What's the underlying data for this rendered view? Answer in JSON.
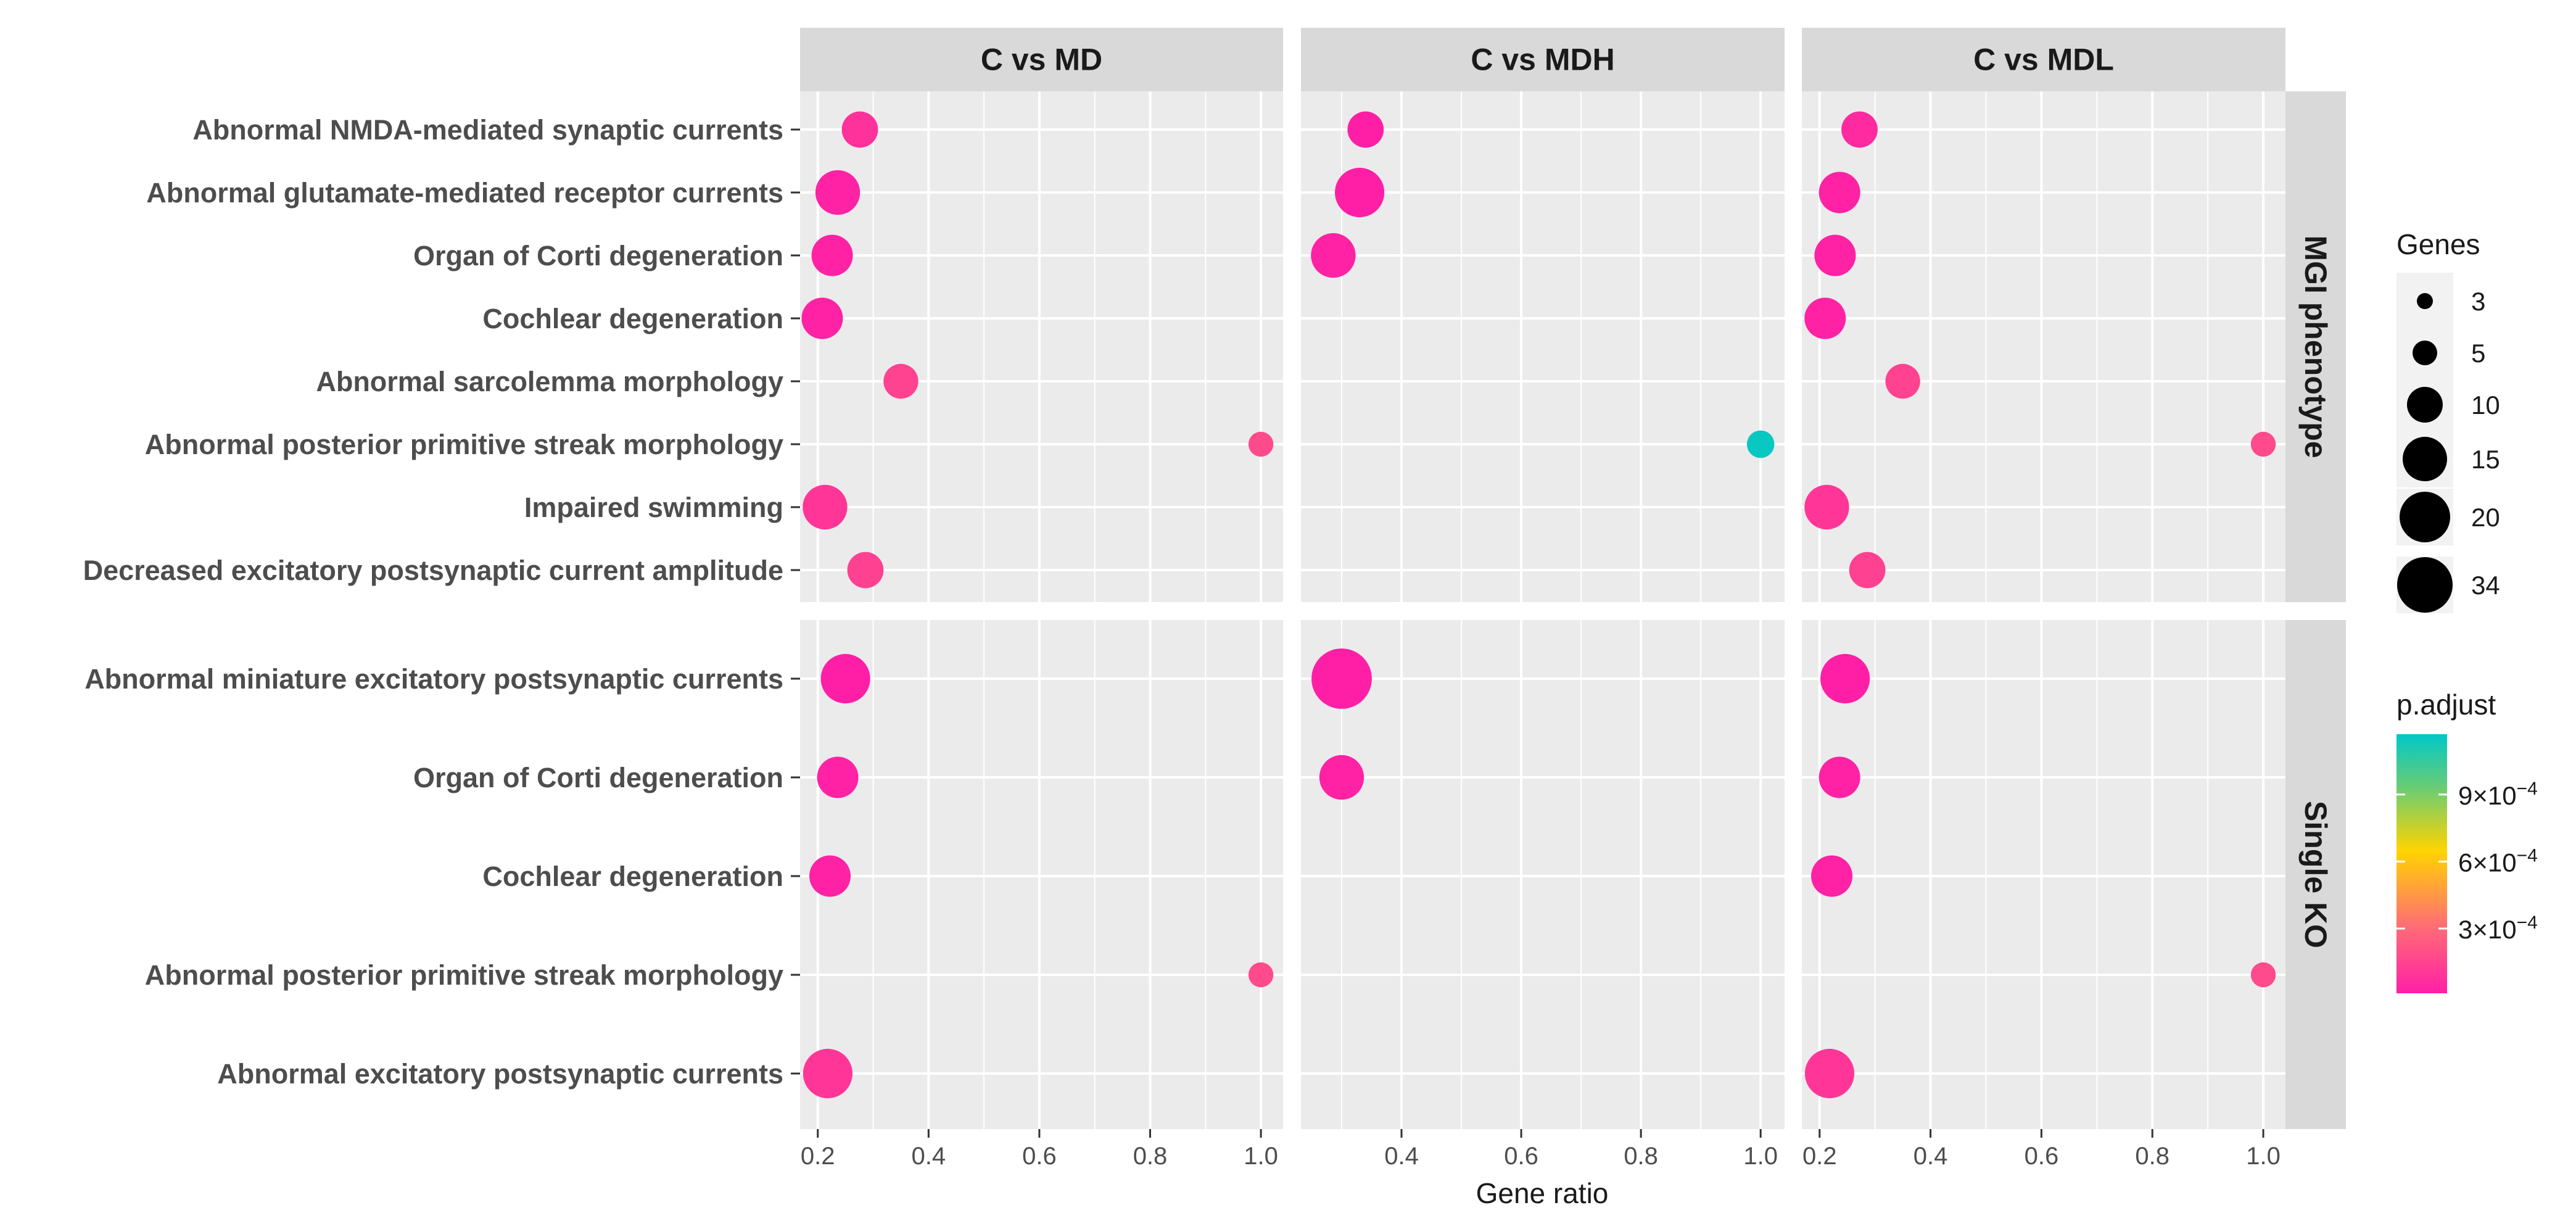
{
  "chart_data": {
    "type": "scatter",
    "chart_kind": "dot plot (faceted)",
    "xlabel": "Gene ratio",
    "x_ticks": {
      "C vs MD": [
        0.2,
        0.4,
        0.6,
        0.8,
        1.0
      ],
      "C vs MDH": [
        0.4,
        0.6,
        0.8,
        1.0
      ],
      "C vs MDL": [
        0.2,
        0.4,
        0.6,
        0.8,
        1.0
      ]
    },
    "x_tick_labels": {
      "0.2": "0.2",
      "0.4": "0.4",
      "0.6": "0.6",
      "0.8": "0.8",
      "1.0": "1.0"
    },
    "facet_columns": [
      "C vs MD",
      "C vs MDH",
      "C vs MDL"
    ],
    "facet_rows": [
      {
        "name": "MGI phenotype",
        "terms": [
          "Abnormal NMDA-mediated synaptic currents",
          "Abnormal glutamate-mediated receptor currents",
          "Organ of Corti degeneration",
          "Cochlear degeneration",
          "Abnormal sarcolemma morphology",
          "Abnormal posterior primitive streak morphology",
          "Impaired swimming",
          "Decreased excitatory postsynaptic current amplitude"
        ]
      },
      {
        "name": "Single KO",
        "terms": [
          "Abnormal miniature excitatory postsynaptic currents",
          "Organ of Corti degeneration",
          "Cochlear degeneration",
          "Abnormal posterior primitive streak morphology",
          "Abnormal excitatory postsynaptic currents"
        ]
      }
    ],
    "points": [
      {
        "facet": "C vs MD",
        "row": "MGI phenotype",
        "term": 0,
        "x": 0.276,
        "genes": 8,
        "p_adjust": 8e-05
      },
      {
        "facet": "C vs MD",
        "row": "MGI phenotype",
        "term": 1,
        "x": 0.236,
        "genes": 15,
        "p_adjust": 2e-05
      },
      {
        "facet": "C vs MD",
        "row": "MGI phenotype",
        "term": 2,
        "x": 0.226,
        "genes": 12,
        "p_adjust": 2e-05
      },
      {
        "facet": "C vs MD",
        "row": "MGI phenotype",
        "term": 3,
        "x": 0.208,
        "genes": 12,
        "p_adjust": 2e-05
      },
      {
        "facet": "C vs MD",
        "row": "MGI phenotype",
        "term": 4,
        "x": 0.35,
        "genes": 7,
        "p_adjust": 0.00015
      },
      {
        "facet": "C vs MD",
        "row": "MGI phenotype",
        "term": 5,
        "x": 1.0,
        "genes": 2,
        "p_adjust": 0.00018
      },
      {
        "facet": "C vs MD",
        "row": "MGI phenotype",
        "term": 6,
        "x": 0.213,
        "genes": 15,
        "p_adjust": 0.0001
      },
      {
        "facet": "C vs MD",
        "row": "MGI phenotype",
        "term": 7,
        "x": 0.286,
        "genes": 8,
        "p_adjust": 0.00014
      },
      {
        "facet": "C vs MD",
        "row": "Single KO",
        "term": 0,
        "x": 0.25,
        "genes": 20,
        "p_adjust": 1e-05
      },
      {
        "facet": "C vs MD",
        "row": "Single KO",
        "term": 1,
        "x": 0.236,
        "genes": 12,
        "p_adjust": 2e-05
      },
      {
        "facet": "C vs MD",
        "row": "Single KO",
        "term": 2,
        "x": 0.222,
        "genes": 12,
        "p_adjust": 2e-05
      },
      {
        "facet": "C vs MD",
        "row": "Single KO",
        "term": 3,
        "x": 1.0,
        "genes": 2,
        "p_adjust": 0.00018
      },
      {
        "facet": "C vs MD",
        "row": "Single KO",
        "term": 4,
        "x": 0.218,
        "genes": 20,
        "p_adjust": 0.0001
      },
      {
        "facet": "C vs MDH",
        "row": "MGI phenotype",
        "term": 0,
        "x": 0.34,
        "genes": 8,
        "p_adjust": 1e-05
      },
      {
        "facet": "C vs MDH",
        "row": "MGI phenotype",
        "term": 1,
        "x": 0.33,
        "genes": 20,
        "p_adjust": 1e-05
      },
      {
        "facet": "C vs MDH",
        "row": "MGI phenotype",
        "term": 2,
        "x": 0.286,
        "genes": 15,
        "p_adjust": 2e-05
      },
      {
        "facet": "C vs MDH",
        "row": "MGI phenotype",
        "term": 5,
        "x": 1.0,
        "genes": 3,
        "p_adjust": 0.00115
      },
      {
        "facet": "C vs MDH",
        "row": "Single KO",
        "term": 0,
        "x": 0.3,
        "genes": 34,
        "p_adjust": 1e-05
      },
      {
        "facet": "C vs MDH",
        "row": "Single KO",
        "term": 1,
        "x": 0.3,
        "genes": 15,
        "p_adjust": 2e-05
      },
      {
        "facet": "C vs MDL",
        "row": "MGI phenotype",
        "term": 0,
        "x": 0.272,
        "genes": 8,
        "p_adjust": 5e-05
      },
      {
        "facet": "C vs MDL",
        "row": "MGI phenotype",
        "term": 1,
        "x": 0.236,
        "genes": 12,
        "p_adjust": 2e-05
      },
      {
        "facet": "C vs MDL",
        "row": "MGI phenotype",
        "term": 2,
        "x": 0.228,
        "genes": 12,
        "p_adjust": 2e-05
      },
      {
        "facet": "C vs MDL",
        "row": "MGI phenotype",
        "term": 3,
        "x": 0.21,
        "genes": 12,
        "p_adjust": 2e-05
      },
      {
        "facet": "C vs MDL",
        "row": "MGI phenotype",
        "term": 4,
        "x": 0.35,
        "genes": 7,
        "p_adjust": 0.00015
      },
      {
        "facet": "C vs MDL",
        "row": "MGI phenotype",
        "term": 5,
        "x": 1.0,
        "genes": 2,
        "p_adjust": 0.00018
      },
      {
        "facet": "C vs MDL",
        "row": "MGI phenotype",
        "term": 6,
        "x": 0.213,
        "genes": 15,
        "p_adjust": 0.0001
      },
      {
        "facet": "C vs MDL",
        "row": "MGI phenotype",
        "term": 7,
        "x": 0.286,
        "genes": 8,
        "p_adjust": 0.00014
      },
      {
        "facet": "C vs MDL",
        "row": "Single KO",
        "term": 0,
        "x": 0.246,
        "genes": 20,
        "p_adjust": 1e-05
      },
      {
        "facet": "C vs MDL",
        "row": "Single KO",
        "term": 1,
        "x": 0.236,
        "genes": 12,
        "p_adjust": 2e-05
      },
      {
        "facet": "C vs MDL",
        "row": "Single KO",
        "term": 2,
        "x": 0.222,
        "genes": 12,
        "p_adjust": 2e-05
      },
      {
        "facet": "C vs MDL",
        "row": "Single KO",
        "term": 3,
        "x": 1.0,
        "genes": 2,
        "p_adjust": 0.00018
      },
      {
        "facet": "C vs MDL",
        "row": "Single KO",
        "term": 4,
        "x": 0.218,
        "genes": 20,
        "p_adjust": 0.0001
      }
    ],
    "size_legend": {
      "title": "Genes",
      "entries": [
        {
          "label": "3",
          "value": 3
        },
        {
          "label": "5",
          "value": 5
        },
        {
          "label": "10",
          "value": 10
        },
        {
          "label": "15",
          "value": 15
        },
        {
          "label": "20",
          "value": 20
        },
        {
          "label": "34",
          "value": 34
        }
      ]
    },
    "color_legend": {
      "title": "p.adjust",
      "range": [
        1e-05,
        0.00117
      ],
      "ticks": [
        {
          "value": 0.0009,
          "label_mantissa": "9×10",
          "label_exp": "−4"
        },
        {
          "value": 0.0006,
          "label_mantissa": "6×10",
          "label_exp": "−4"
        },
        {
          "value": 0.0003,
          "label_mantissa": "3×10",
          "label_exp": "−4"
        }
      ],
      "gradient_colors": [
        "#ff1fa6",
        "#ff6a78",
        "#ffd400",
        "#66cc77",
        "#00c8c8"
      ]
    },
    "colors": {
      "panel_background": "#ebebeb",
      "grid": "#ffffff",
      "strip_background": "#d9d9d9",
      "label_text": "#4d4d4d",
      "strip_text": "#1a1a1a"
    }
  }
}
